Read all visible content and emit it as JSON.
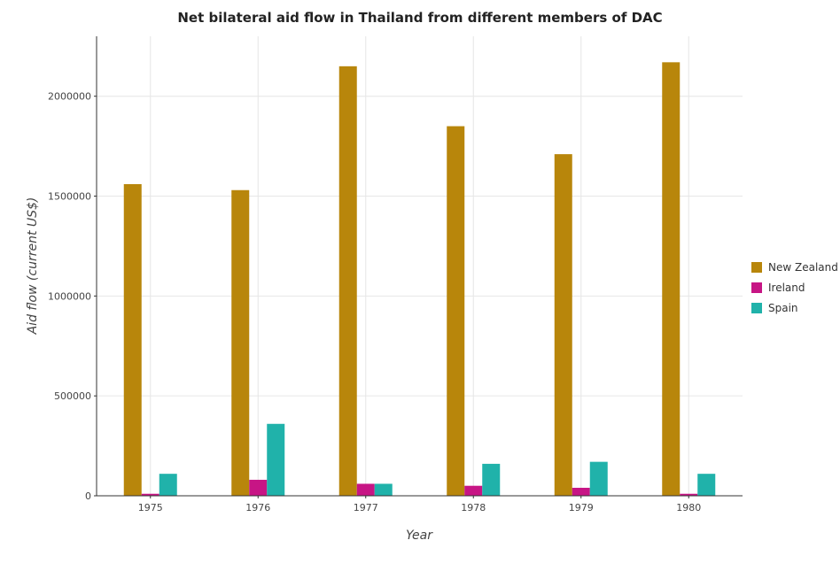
{
  "chart_data": {
    "type": "bar",
    "title": "Net bilateral aid flow in Thailand from different members of DAC",
    "xlabel": "Year",
    "ylabel": "Aid flow (current US$)",
    "categories": [
      "1975",
      "1976",
      "1977",
      "1978",
      "1979",
      "1980"
    ],
    "ylim": [
      0,
      2300000
    ],
    "yticks": [
      0,
      500000,
      1000000,
      1500000,
      2000000
    ],
    "ytick_labels": [
      "0",
      "500000",
      "1000000",
      "1500000",
      "2000000"
    ],
    "grid": true,
    "legend_position": "right",
    "series": [
      {
        "name": "New Zealand",
        "color": "#b8860b",
        "values": [
          1560000,
          1530000,
          2150000,
          1850000,
          1710000,
          2170000
        ]
      },
      {
        "name": "Ireland",
        "color": "#c71585",
        "values": [
          10000,
          80000,
          60000,
          50000,
          40000,
          10000
        ]
      },
      {
        "name": "Spain",
        "color": "#20b2aa",
        "values": [
          110000,
          360000,
          60000,
          160000,
          170000,
          110000
        ]
      }
    ]
  }
}
